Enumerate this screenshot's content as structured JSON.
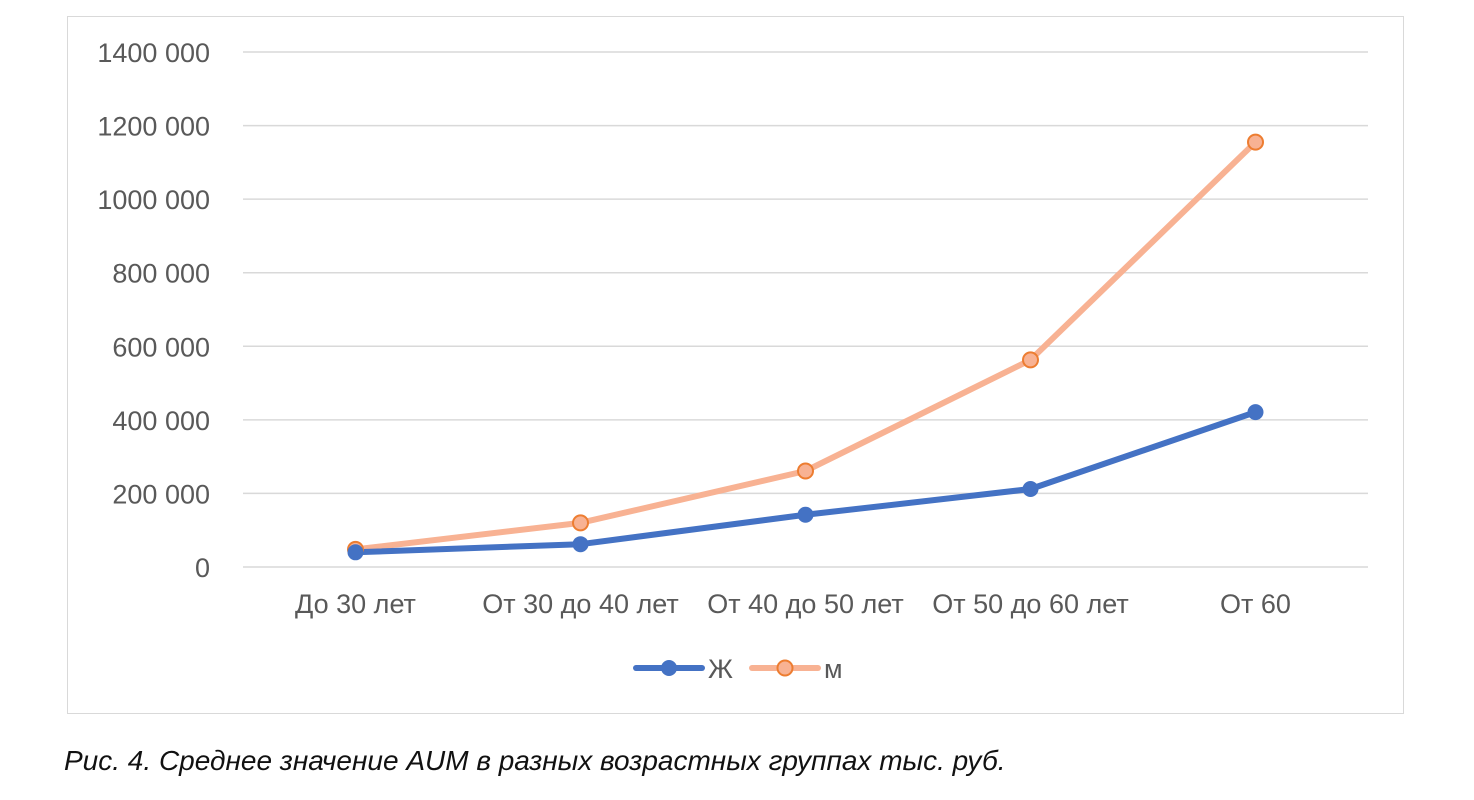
{
  "chart_data": {
    "type": "line",
    "categories": [
      "До 30 лет",
      "От 30 до 40 лет",
      "От 40 до 50 лет",
      "От 50 до 60 лет",
      "От 60"
    ],
    "series": [
      {
        "name": "Ж",
        "values": [
          40000,
          62000,
          142000,
          212000,
          421000
        ],
        "color": "#4472c4",
        "marker": "filled-circle"
      },
      {
        "name": "м",
        "values": [
          48000,
          120000,
          261000,
          563000,
          1155000
        ],
        "color": "#f8b293",
        "marker_color": "#ed7d31",
        "marker": "hollow-circle"
      }
    ],
    "ylim": [
      0,
      1400000
    ],
    "yticks": [
      0,
      200000,
      400000,
      600000,
      800000,
      1000000,
      1200000,
      1400000
    ],
    "ytick_labels": [
      "0",
      "200 000",
      "400 000",
      "600 000",
      "800 000",
      "1000 000",
      "1200 000",
      "1400 000"
    ],
    "grid": true,
    "legend": "bottom-center",
    "xlabel": "",
    "ylabel": "",
    "title": ""
  },
  "caption": "Рис. 4. Среднее значение AUM в разных возрастных группах тыс. руб."
}
